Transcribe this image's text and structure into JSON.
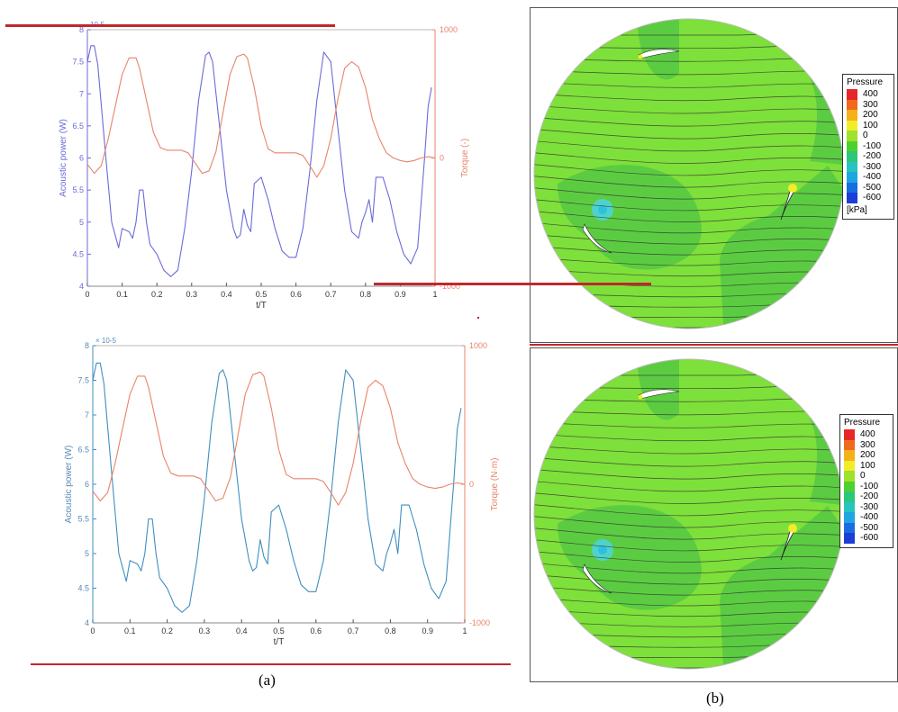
{
  "captions": {
    "a": "(a)",
    "b": "(b)"
  },
  "chart_data": [
    {
      "type": "line",
      "xlabel": "t/T",
      "ylabel": "Acoustic power (W)",
      "y2label": "Torque (-)",
      "exponent_label": "10-5",
      "xlim": [
        0,
        1
      ],
      "ylim": [
        4,
        8
      ],
      "y2lim": [
        -1000,
        1000
      ],
      "xticks": [
        "0",
        "0.1",
        "0.2",
        "0.3",
        "0.4",
        "0.5",
        "0.6",
        "0.7",
        "0.8",
        "0.9",
        "1"
      ],
      "yticks": [
        "4",
        "4.5",
        "5",
        "5.5",
        "6",
        "6.5",
        "7",
        "7.5",
        "8"
      ],
      "y2ticks": [
        "-1000",
        "0",
        "1000"
      ],
      "colors": {
        "power": "#6b6bd9",
        "torque": "#e8846a"
      },
      "series": [
        {
          "axis": "left",
          "x": [
            0,
            0.01,
            0.02,
            0.03,
            0.05,
            0.07,
            0.09,
            0.1,
            0.12,
            0.13,
            0.14,
            0.15,
            0.16,
            0.17,
            0.18,
            0.2,
            0.22,
            0.24,
            0.26,
            0.28,
            0.3,
            0.32,
            0.34,
            0.35,
            0.36,
            0.38,
            0.4,
            0.42,
            0.43,
            0.44,
            0.45,
            0.46,
            0.47,
            0.48,
            0.5,
            0.52,
            0.54,
            0.56,
            0.58,
            0.6,
            0.62,
            0.64,
            0.66,
            0.68,
            0.7,
            0.72,
            0.74,
            0.76,
            0.78,
            0.79,
            0.8,
            0.81,
            0.82,
            0.83,
            0.85,
            0.87,
            0.89,
            0.91,
            0.93,
            0.95,
            0.97,
            0.98,
            0.99
          ],
          "values": [
            7.5,
            7.75,
            7.75,
            7.45,
            6.2,
            5.0,
            4.6,
            4.9,
            4.85,
            4.75,
            5.0,
            5.5,
            5.5,
            5.0,
            4.65,
            4.5,
            4.25,
            4.15,
            4.25,
            4.9,
            5.8,
            6.9,
            7.6,
            7.65,
            7.5,
            6.5,
            5.5,
            4.9,
            4.75,
            4.8,
            5.2,
            4.95,
            4.85,
            5.6,
            5.7,
            5.35,
            4.9,
            4.55,
            4.45,
            4.45,
            4.9,
            5.8,
            6.9,
            7.65,
            7.5,
            6.5,
            5.5,
            4.85,
            4.75,
            5.0,
            5.15,
            5.35,
            5.0,
            5.7,
            5.7,
            5.35,
            4.85,
            4.5,
            4.35,
            4.6,
            6.0,
            6.8,
            7.1
          ]
        },
        {
          "axis": "right",
          "x": [
            0,
            0.02,
            0.04,
            0.06,
            0.08,
            0.1,
            0.12,
            0.14,
            0.15,
            0.17,
            0.19,
            0.21,
            0.23,
            0.25,
            0.27,
            0.29,
            0.31,
            0.33,
            0.35,
            0.37,
            0.39,
            0.41,
            0.43,
            0.45,
            0.46,
            0.48,
            0.5,
            0.52,
            0.54,
            0.56,
            0.58,
            0.6,
            0.62,
            0.64,
            0.66,
            0.68,
            0.7,
            0.72,
            0.74,
            0.76,
            0.78,
            0.8,
            0.82,
            0.84,
            0.86,
            0.88,
            0.9,
            0.92,
            0.94,
            0.96,
            0.98,
            1
          ],
          "values": [
            -50,
            -120,
            -60,
            150,
            400,
            650,
            780,
            780,
            700,
            450,
            200,
            80,
            60,
            60,
            60,
            40,
            -40,
            -120,
            -100,
            50,
            350,
            650,
            790,
            810,
            780,
            550,
            250,
            70,
            40,
            40,
            40,
            40,
            20,
            -60,
            -150,
            -60,
            150,
            450,
            700,
            750,
            710,
            550,
            300,
            150,
            40,
            0,
            -20,
            -30,
            -20,
            0,
            10,
            0
          ]
        }
      ]
    },
    {
      "type": "line",
      "xlabel": "t/T",
      "ylabel": "Acoustic power (W)",
      "y2label": "Torque (N·m)",
      "exponent_label": "× 10-5",
      "xlim": [
        0,
        1
      ],
      "ylim": [
        4,
        8
      ],
      "y2lim": [
        -1000,
        1000
      ],
      "xticks": [
        "0",
        "0.1",
        "0.2",
        "0.3",
        "0.4",
        "0.5",
        "0.6",
        "0.7",
        "0.8",
        "0.9",
        "1"
      ],
      "yticks": [
        "4",
        "4.5",
        "5",
        "5.5",
        "6",
        "6.5",
        "7",
        "7.5",
        "8"
      ],
      "y2ticks": [
        "-1000",
        "0",
        "1000"
      ],
      "colors": {
        "power": "#3f8fc0",
        "torque": "#e8846a"
      },
      "series": [
        {
          "axis": "left",
          "x": [
            0,
            0.01,
            0.02,
            0.03,
            0.05,
            0.07,
            0.09,
            0.1,
            0.12,
            0.13,
            0.14,
            0.15,
            0.16,
            0.17,
            0.18,
            0.2,
            0.22,
            0.24,
            0.26,
            0.28,
            0.3,
            0.32,
            0.34,
            0.35,
            0.36,
            0.38,
            0.4,
            0.42,
            0.43,
            0.44,
            0.45,
            0.46,
            0.47,
            0.48,
            0.5,
            0.52,
            0.54,
            0.56,
            0.58,
            0.6,
            0.62,
            0.64,
            0.66,
            0.68,
            0.7,
            0.72,
            0.74,
            0.76,
            0.78,
            0.79,
            0.8,
            0.81,
            0.82,
            0.83,
            0.85,
            0.87,
            0.89,
            0.91,
            0.93,
            0.95,
            0.97,
            0.98,
            0.99
          ],
          "values": [
            7.5,
            7.75,
            7.75,
            7.45,
            6.2,
            5.0,
            4.6,
            4.9,
            4.85,
            4.75,
            5.0,
            5.5,
            5.5,
            5.0,
            4.65,
            4.5,
            4.25,
            4.15,
            4.25,
            4.9,
            5.8,
            6.9,
            7.6,
            7.65,
            7.5,
            6.5,
            5.5,
            4.9,
            4.75,
            4.8,
            5.2,
            4.95,
            4.85,
            5.6,
            5.7,
            5.35,
            4.9,
            4.55,
            4.45,
            4.45,
            4.9,
            5.8,
            6.9,
            7.65,
            7.5,
            6.5,
            5.5,
            4.85,
            4.75,
            5.0,
            5.15,
            5.35,
            5.0,
            5.7,
            5.7,
            5.35,
            4.85,
            4.5,
            4.35,
            4.6,
            6.0,
            6.8,
            7.1
          ]
        },
        {
          "axis": "right",
          "x": [
            0,
            0.02,
            0.04,
            0.06,
            0.08,
            0.1,
            0.12,
            0.14,
            0.15,
            0.17,
            0.19,
            0.21,
            0.23,
            0.25,
            0.27,
            0.29,
            0.31,
            0.33,
            0.35,
            0.37,
            0.39,
            0.41,
            0.43,
            0.45,
            0.46,
            0.48,
            0.5,
            0.52,
            0.54,
            0.56,
            0.58,
            0.6,
            0.62,
            0.64,
            0.66,
            0.68,
            0.7,
            0.72,
            0.74,
            0.76,
            0.78,
            0.8,
            0.82,
            0.84,
            0.86,
            0.88,
            0.9,
            0.92,
            0.94,
            0.96,
            0.98,
            1
          ],
          "values": [
            -50,
            -120,
            -60,
            150,
            400,
            650,
            780,
            780,
            700,
            450,
            200,
            80,
            60,
            60,
            60,
            40,
            -40,
            -120,
            -100,
            50,
            350,
            650,
            790,
            810,
            780,
            550,
            250,
            70,
            40,
            40,
            40,
            40,
            20,
            -60,
            -150,
            -60,
            150,
            450,
            700,
            750,
            710,
            550,
            300,
            150,
            40,
            0,
            -20,
            -30,
            -20,
            0,
            10,
            0
          ]
        }
      ]
    }
  ],
  "contour_legend": {
    "title": "Pressure",
    "unit": "[kPa]",
    "levels": [
      "400",
      "300",
      "200",
      "100",
      "0",
      "-100",
      "-200",
      "-300",
      "-400",
      "-500",
      "-600"
    ],
    "colors": [
      "#e8262a",
      "#f06a1e",
      "#f5b01a",
      "#f2ec2a",
      "#9fe12c",
      "#4ed12f",
      "#2cc77a",
      "#27c4bd",
      "#1fa6e2",
      "#1a6de0",
      "#1c3ed6"
    ]
  }
}
